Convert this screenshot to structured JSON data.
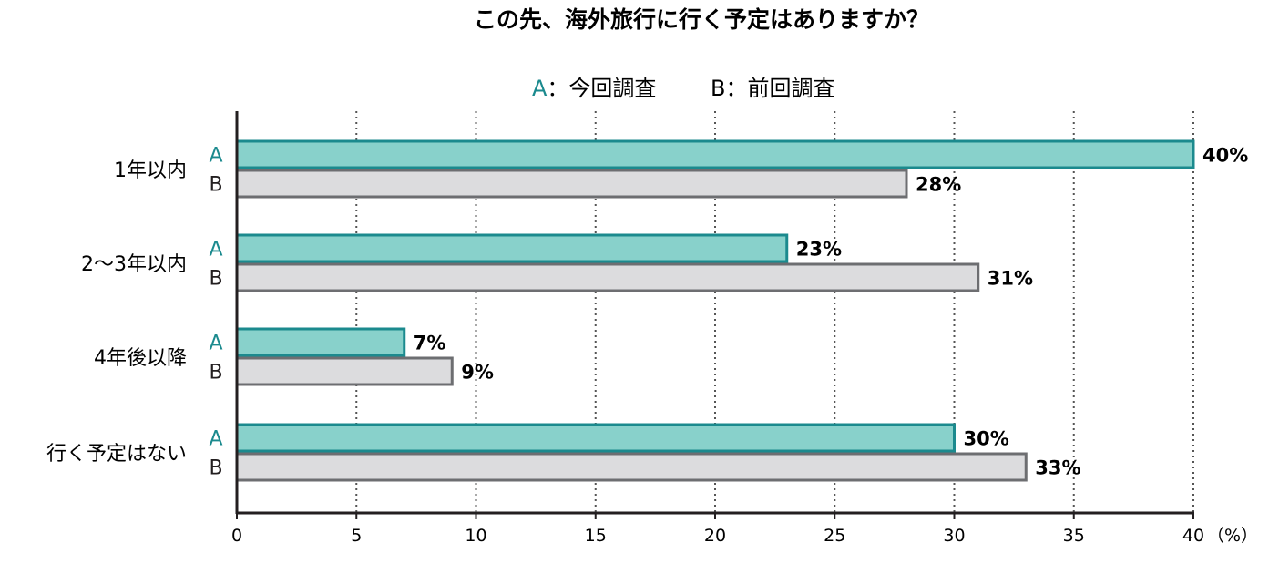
{
  "chart_data": {
    "type": "bar",
    "orientation": "horizontal",
    "title": "この先、海外旅行に行く予定はありますか？",
    "legend": [
      {
        "key": "A",
        "sep": "：",
        "label": "今回調査"
      },
      {
        "key": "B",
        "sep": "：",
        "label": "前回調査"
      }
    ],
    "legend_position": "top-center",
    "categories": [
      "1年以内",
      "2〜3年以内",
      "4年後以降",
      "行く予定はない"
    ],
    "series": [
      {
        "name": "今回調査",
        "key": "A",
        "values": [
          40,
          23,
          7,
          30
        ],
        "value_labels": [
          "40%",
          "23%",
          "7%",
          "30%"
        ]
      },
      {
        "name": "前回調査",
        "key": "B",
        "values": [
          28,
          31,
          9,
          33
        ],
        "value_labels": [
          "28%",
          "31%",
          "9%",
          "33%"
        ]
      }
    ],
    "xlim": [
      0,
      40
    ],
    "xticks": [
      0,
      5,
      10,
      15,
      20,
      25,
      30,
      35,
      40
    ],
    "xtick_labels": [
      "0",
      "5",
      "10",
      "15",
      "20",
      "25",
      "30",
      "35",
      "40"
    ],
    "unit_label": "（%）",
    "grid": "vertical dotted"
  },
  "colors": {
    "a_fill": "#88d1cb",
    "a_stroke": "#1b8a8e",
    "a_text": "#1b8a8e",
    "b_fill": "#dcdcde",
    "b_stroke": "#6d6e71",
    "axis": "#231f20",
    "grid": "#555555"
  }
}
